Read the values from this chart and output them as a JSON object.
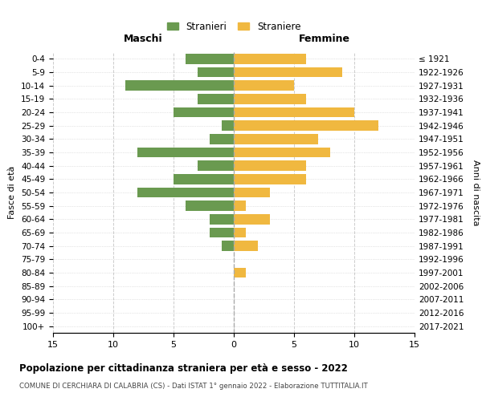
{
  "age_groups": [
    "0-4",
    "5-9",
    "10-14",
    "15-19",
    "20-24",
    "25-29",
    "30-34",
    "35-39",
    "40-44",
    "45-49",
    "50-54",
    "55-59",
    "60-64",
    "65-69",
    "70-74",
    "75-79",
    "80-84",
    "85-89",
    "90-94",
    "95-99",
    "100+"
  ],
  "birth_years": [
    "2017-2021",
    "2012-2016",
    "2007-2011",
    "2002-2006",
    "1997-2001",
    "1992-1996",
    "1987-1991",
    "1982-1986",
    "1977-1981",
    "1972-1976",
    "1967-1971",
    "1962-1966",
    "1957-1961",
    "1952-1956",
    "1947-1951",
    "1942-1946",
    "1937-1941",
    "1932-1936",
    "1927-1931",
    "1922-1926",
    "≤ 1921"
  ],
  "maschi": [
    4,
    3,
    9,
    3,
    5,
    1,
    2,
    8,
    3,
    5,
    8,
    4,
    2,
    2,
    1,
    0,
    0,
    0,
    0,
    0,
    0
  ],
  "femmine": [
    6,
    9,
    5,
    6,
    10,
    12,
    7,
    8,
    6,
    6,
    3,
    1,
    3,
    1,
    2,
    0,
    1,
    0,
    0,
    0,
    0
  ],
  "maschi_color": "#6a9a50",
  "femmine_color": "#f0b840",
  "background_color": "#ffffff",
  "grid_color": "#cccccc",
  "title": "Popolazione per cittadinanza straniera per età e sesso - 2022",
  "subtitle": "COMUNE DI CERCHIARA DI CALABRIA (CS) - Dati ISTAT 1° gennaio 2022 - Elaborazione TUTTITALIA.IT",
  "xlabel_left": "Maschi",
  "xlabel_right": "Femmine",
  "ylabel_left": "Fasce di età",
  "ylabel_right": "Anni di nascita",
  "legend_maschi": "Stranieri",
  "legend_femmine": "Straniere",
  "xlim": 15,
  "bar_height": 0.75
}
